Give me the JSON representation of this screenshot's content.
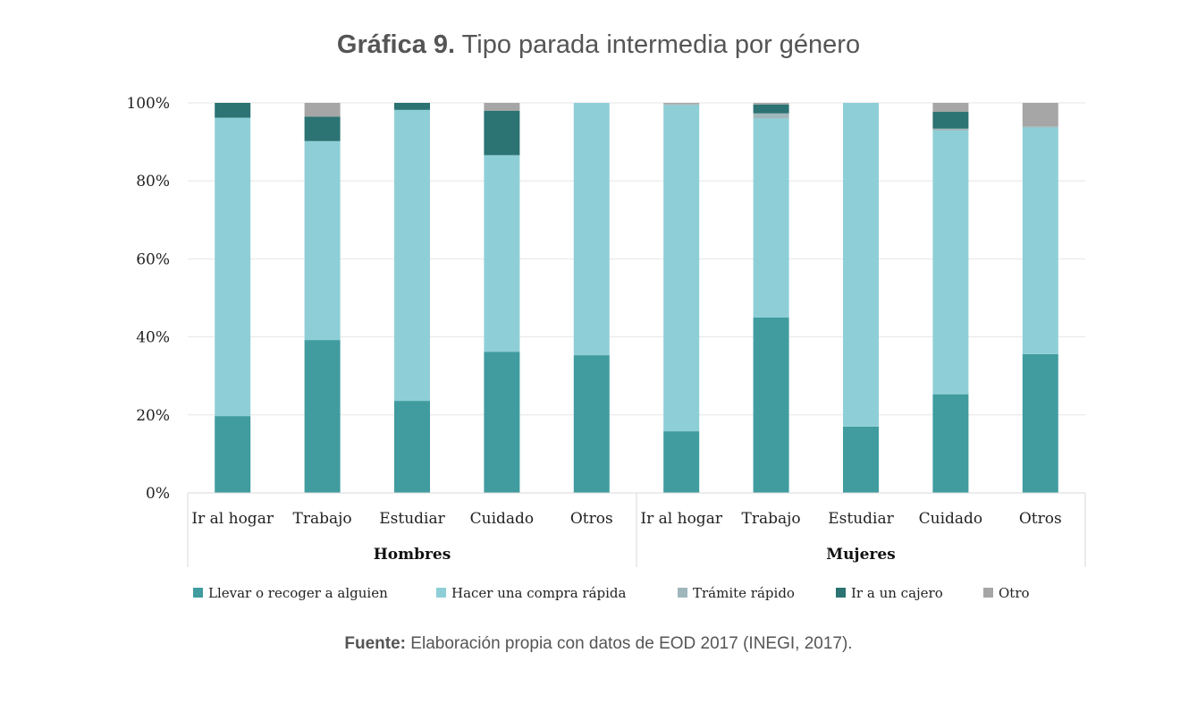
{
  "title": {
    "bold": "Gráfica 9.",
    "text": " Tipo parada intermedia por género"
  },
  "source": {
    "bold": "Fuente:",
    "text": " Elaboración propia con datos de EOD 2017 (INEGI, 2017)."
  },
  "chart_data": {
    "type": "bar",
    "stacked": true,
    "percent": true,
    "ylim": [
      0,
      100
    ],
    "yticks": [
      "0%",
      "20%",
      "40%",
      "60%",
      "80%",
      "100%"
    ],
    "grid": true,
    "legend_position": "bottom",
    "groups": [
      {
        "name": "Hombres",
        "categories": [
          "Ir al hogar",
          "Trabajo",
          "Estudiar",
          "Cuidado",
          "Otros"
        ]
      },
      {
        "name": "Mujeres",
        "categories": [
          "Ir al hogar",
          "Trabajo",
          "Estudiar",
          "Cuidado",
          "Otros"
        ]
      }
    ],
    "series": [
      {
        "name": "Llevar o recoger a alguien",
        "color": "#409c9f",
        "values": [
          19.7,
          39.2,
          23.6,
          36.2,
          35.3,
          15.8,
          45.0,
          17.0,
          25.3,
          35.6
        ]
      },
      {
        "name": "Hacer una compra rápida",
        "color": "#8ecfd7",
        "values": [
          76.5,
          51.0,
          74.6,
          50.4,
          64.7,
          83.6,
          51.0,
          83.0,
          67.6,
          58.1
        ]
      },
      {
        "name": "Trámite rápido",
        "color": "#9fb7bb",
        "values": [
          0.0,
          0.0,
          0.0,
          0.0,
          0.0,
          0.3,
          1.3,
          0.0,
          0.5,
          0.3
        ]
      },
      {
        "name": "Ir a un cajero",
        "color": "#2c7373",
        "values": [
          3.8,
          6.3,
          1.8,
          11.4,
          0.0,
          0.0,
          2.3,
          0.0,
          4.3,
          0.0
        ]
      },
      {
        "name": "Otro",
        "color": "#a6a6a6",
        "values": [
          0.0,
          3.5,
          0.0,
          2.0,
          0.0,
          0.3,
          0.4,
          0.0,
          2.3,
          6.0
        ]
      }
    ]
  }
}
